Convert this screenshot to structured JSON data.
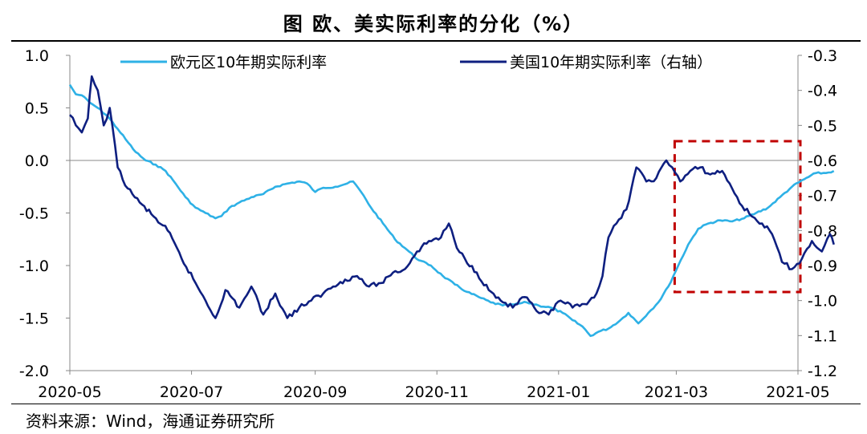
{
  "title": "图  欧、美实际利率的分化（%）",
  "source": "资料来源：Wind，海通证券研究所",
  "chart_data": {
    "type": "line",
    "x_ticks": [
      "2020-05",
      "2020-07",
      "2020-09",
      "2020-11",
      "2021-01",
      "2021-03",
      "2021-05"
    ],
    "y_left": {
      "min": -2.0,
      "max": 1.0,
      "ticks": [
        "1.0",
        "0.5",
        "0.0",
        "-0.5",
        "-1.0",
        "-1.5",
        "-2.0"
      ]
    },
    "y_right": {
      "min": -1.2,
      "max": -0.3,
      "ticks": [
        "-0.3",
        "-0.4",
        "-0.5",
        "-0.6",
        "-0.7",
        "-0.8",
        "-0.9",
        "-1.0",
        "-1.1",
        "-1.2"
      ]
    },
    "grid": false,
    "legend_position": "top",
    "highlight_box": {
      "from": "2021-03",
      "to": "2021-05",
      "color": "#c00000",
      "style": "dashed"
    },
    "series": [
      {
        "name": "欧元区10年期实际利率",
        "axis": "left",
        "color": "#2eb1e6",
        "points": [
          [
            "2020-05-01",
            0.72
          ],
          [
            "2020-05-04",
            0.63
          ],
          [
            "2020-05-07",
            0.62
          ],
          [
            "2020-05-11",
            0.55
          ],
          [
            "2020-05-15",
            0.5
          ],
          [
            "2020-05-20",
            0.42
          ],
          [
            "2020-05-25",
            0.3
          ],
          [
            "2020-05-29",
            0.2
          ],
          [
            "2020-06-03",
            0.08
          ],
          [
            "2020-06-08",
            0.0
          ],
          [
            "2020-06-13",
            -0.04
          ],
          [
            "2020-06-18",
            -0.1
          ],
          [
            "2020-06-23",
            -0.22
          ],
          [
            "2020-06-28",
            -0.35
          ],
          [
            "2020-07-03",
            -0.45
          ],
          [
            "2020-07-08",
            -0.5
          ],
          [
            "2020-07-13",
            -0.55
          ],
          [
            "2020-07-16",
            -0.53
          ],
          [
            "2020-07-20",
            -0.45
          ],
          [
            "2020-07-25",
            -0.4
          ],
          [
            "2020-07-31",
            -0.35
          ],
          [
            "2020-08-06",
            -0.32
          ],
          [
            "2020-08-12",
            -0.25
          ],
          [
            "2020-08-18",
            -0.22
          ],
          [
            "2020-08-24",
            -0.2
          ],
          [
            "2020-08-28",
            -0.22
          ],
          [
            "2020-09-01",
            -0.3
          ],
          [
            "2020-09-05",
            -0.26
          ],
          [
            "2020-09-11",
            -0.25
          ],
          [
            "2020-09-17",
            -0.22
          ],
          [
            "2020-09-20",
            -0.2
          ],
          [
            "2020-09-24",
            -0.3
          ],
          [
            "2020-09-29",
            -0.45
          ],
          [
            "2020-10-05",
            -0.6
          ],
          [
            "2020-10-11",
            -0.75
          ],
          [
            "2020-10-17",
            -0.85
          ],
          [
            "2020-10-23",
            -0.95
          ],
          [
            "2020-10-29",
            -1.0
          ],
          [
            "2020-11-04",
            -1.1
          ],
          [
            "2020-11-10",
            -1.18
          ],
          [
            "2020-11-16",
            -1.25
          ],
          [
            "2020-11-22",
            -1.3
          ],
          [
            "2020-11-28",
            -1.35
          ],
          [
            "2020-12-04",
            -1.38
          ],
          [
            "2020-12-10",
            -1.37
          ],
          [
            "2020-12-16",
            -1.35
          ],
          [
            "2020-12-22",
            -1.38
          ],
          [
            "2020-12-28",
            -1.4
          ],
          [
            "2021-01-03",
            -1.45
          ],
          [
            "2021-01-08",
            -1.52
          ],
          [
            "2021-01-13",
            -1.58
          ],
          [
            "2021-01-17",
            -1.67
          ],
          [
            "2021-01-21",
            -1.63
          ],
          [
            "2021-01-26",
            -1.6
          ],
          [
            "2021-02-01",
            -1.52
          ],
          [
            "2021-02-05",
            -1.45
          ],
          [
            "2021-02-10",
            -1.55
          ],
          [
            "2021-02-15",
            -1.45
          ],
          [
            "2021-02-20",
            -1.35
          ],
          [
            "2021-02-25",
            -1.2
          ],
          [
            "2021-03-02",
            -1.0
          ],
          [
            "2021-03-07",
            -0.8
          ],
          [
            "2021-03-12",
            -0.65
          ],
          [
            "2021-03-17",
            -0.6
          ],
          [
            "2021-03-23",
            -0.57
          ],
          [
            "2021-03-29",
            -0.58
          ],
          [
            "2021-04-04",
            -0.55
          ],
          [
            "2021-04-10",
            -0.5
          ],
          [
            "2021-04-16",
            -0.45
          ],
          [
            "2021-04-22",
            -0.35
          ],
          [
            "2021-04-28",
            -0.25
          ],
          [
            "2021-05-04",
            -0.18
          ],
          [
            "2021-05-10",
            -0.12
          ],
          [
            "2021-05-15",
            -0.12
          ],
          [
            "2021-05-19",
            -0.1
          ]
        ]
      },
      {
        "name": "美国10年期实际利率（右轴）",
        "axis": "right",
        "color": "#0e1f80",
        "points": [
          [
            "2020-05-01",
            -0.47
          ],
          [
            "2020-05-04",
            -0.5
          ],
          [
            "2020-05-07",
            -0.52
          ],
          [
            "2020-05-10",
            -0.48
          ],
          [
            "2020-05-12",
            -0.36
          ],
          [
            "2020-05-15",
            -0.4
          ],
          [
            "2020-05-18",
            -0.5
          ],
          [
            "2020-05-21",
            -0.45
          ],
          [
            "2020-05-25",
            -0.62
          ],
          [
            "2020-05-30",
            -0.68
          ],
          [
            "2020-06-05",
            -0.72
          ],
          [
            "2020-06-12",
            -0.76
          ],
          [
            "2020-06-19",
            -0.8
          ],
          [
            "2020-06-26",
            -0.88
          ],
          [
            "2020-07-03",
            -0.95
          ],
          [
            "2020-07-08",
            -1.0
          ],
          [
            "2020-07-13",
            -1.05
          ],
          [
            "2020-07-18",
            -0.97
          ],
          [
            "2020-07-25",
            -1.02
          ],
          [
            "2020-07-31",
            -0.96
          ],
          [
            "2020-08-06",
            -1.04
          ],
          [
            "2020-08-12",
            -0.98
          ],
          [
            "2020-08-18",
            -1.05
          ],
          [
            "2020-08-24",
            -1.02
          ],
          [
            "2020-08-30",
            -1.0
          ],
          [
            "2020-09-05",
            -0.98
          ],
          [
            "2020-09-10",
            -0.96
          ],
          [
            "2020-09-16",
            -0.94
          ],
          [
            "2020-09-22",
            -0.93
          ],
          [
            "2020-09-28",
            -0.96
          ],
          [
            "2020-10-04",
            -0.95
          ],
          [
            "2020-10-10",
            -0.92
          ],
          [
            "2020-10-16",
            -0.91
          ],
          [
            "2020-10-22",
            -0.86
          ],
          [
            "2020-10-28",
            -0.83
          ],
          [
            "2020-11-03",
            -0.82
          ],
          [
            "2020-11-07",
            -0.78
          ],
          [
            "2020-11-11",
            -0.85
          ],
          [
            "2020-11-15",
            -0.88
          ],
          [
            "2020-11-21",
            -0.92
          ],
          [
            "2020-11-27",
            -0.97
          ],
          [
            "2020-12-03",
            -1.0
          ],
          [
            "2020-12-09",
            -1.02
          ],
          [
            "2020-12-15",
            -0.99
          ],
          [
            "2020-12-21",
            -1.03
          ],
          [
            "2020-12-27",
            -1.04
          ],
          [
            "2021-01-02",
            -1.0
          ],
          [
            "2021-01-08",
            -1.02
          ],
          [
            "2021-01-14",
            -1.01
          ],
          [
            "2021-01-20",
            -0.98
          ],
          [
            "2021-01-23",
            -0.93
          ],
          [
            "2021-01-26",
            -0.82
          ],
          [
            "2021-01-30",
            -0.78
          ],
          [
            "2021-02-04",
            -0.74
          ],
          [
            "2021-02-09",
            -0.62
          ],
          [
            "2021-02-14",
            -0.66
          ],
          [
            "2021-02-19",
            -0.65
          ],
          [
            "2021-02-24",
            -0.6
          ],
          [
            "2021-02-27",
            -0.62
          ],
          [
            "2021-03-03",
            -0.66
          ],
          [
            "2021-03-08",
            -0.63
          ],
          [
            "2021-03-13",
            -0.62
          ],
          [
            "2021-03-18",
            -0.64
          ],
          [
            "2021-03-24",
            -0.63
          ],
          [
            "2021-03-29",
            -0.68
          ],
          [
            "2021-04-03",
            -0.73
          ],
          [
            "2021-04-08",
            -0.76
          ],
          [
            "2021-04-13",
            -0.78
          ],
          [
            "2021-04-18",
            -0.81
          ],
          [
            "2021-04-23",
            -0.89
          ],
          [
            "2021-04-28",
            -0.91
          ],
          [
            "2021-05-03",
            -0.88
          ],
          [
            "2021-05-08",
            -0.83
          ],
          [
            "2021-05-13",
            -0.86
          ],
          [
            "2021-05-17",
            -0.81
          ],
          [
            "2021-05-19",
            -0.84
          ]
        ]
      }
    ]
  }
}
